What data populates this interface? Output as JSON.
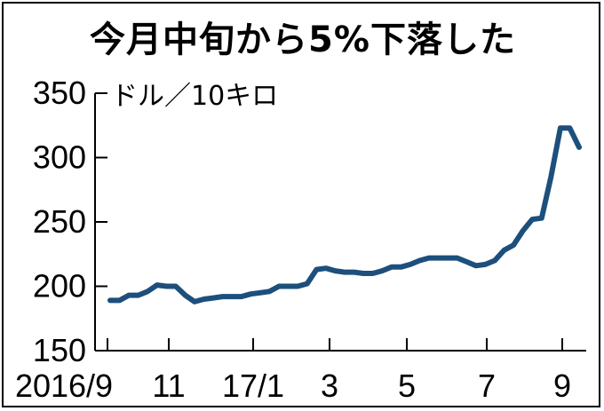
{
  "chart_data": {
    "type": "line",
    "title": "今月中旬から5%下落した",
    "unit_label": "ドル／10キロ",
    "ylim": [
      150,
      350
    ],
    "y_ticks": [
      150,
      200,
      250,
      300,
      350
    ],
    "x_tick_labels": [
      "2016/9",
      "11",
      "17/1",
      "3",
      "5",
      "7",
      "9"
    ],
    "line_color": "#1d4f7c",
    "grid": false,
    "series": [
      {
        "values": [
          189,
          189,
          193,
          193,
          196,
          201,
          200,
          200,
          193,
          188,
          190,
          191,
          192,
          192,
          192,
          194,
          195,
          196,
          200,
          200,
          200,
          202,
          213,
          214,
          212,
          211,
          211,
          210,
          210,
          212,
          215,
          215,
          217,
          220,
          222,
          222,
          222,
          222,
          219,
          216,
          217,
          220,
          228,
          232,
          243,
          252,
          253,
          285,
          323,
          323,
          308
        ]
      }
    ]
  }
}
